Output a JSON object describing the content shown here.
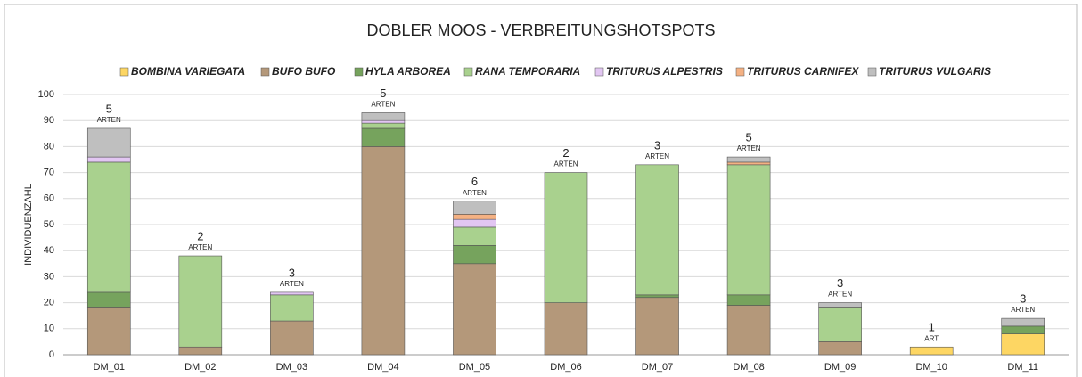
{
  "chart_data": {
    "type": "stacked_bar",
    "title": "DOBLER MOOS - VERBREITUNGSHOTSPOTS",
    "y_label": "INDIVIDUENZAHL",
    "categories": [
      "DM_01",
      "DM_02",
      "DM_03",
      "DM_04",
      "DM_05",
      "DM_06",
      "DM_07",
      "DM_08",
      "DM_09",
      "DM_10",
      "DM_11"
    ],
    "series": [
      {
        "name": "BOMBINA VARIEGATA",
        "color": "#fdd663",
        "values": [
          0,
          0,
          0,
          0,
          0,
          0,
          0,
          0,
          0,
          3,
          8
        ]
      },
      {
        "name": "BUFO BUFO",
        "color": "#b4987a",
        "values": [
          18,
          3,
          13,
          80,
          35,
          20,
          22,
          19,
          5,
          0,
          0
        ]
      },
      {
        "name": "HYLA ARBOREA",
        "color": "#76a35d",
        "values": [
          6,
          0,
          0,
          7,
          7,
          0,
          1,
          4,
          0,
          0,
          3
        ]
      },
      {
        "name": "RANA TEMPORARIA",
        "color": "#a9d18e",
        "values": [
          50,
          35,
          10,
          2,
          7,
          50,
          50,
          50,
          13,
          0,
          0
        ]
      },
      {
        "name": "TRITURUS ALPESTRIS",
        "color": "#e2c6f2",
        "values": [
          2,
          0,
          1,
          1,
          3,
          0,
          0,
          0,
          0,
          0,
          0
        ]
      },
      {
        "name": "TRITURUS CARNIFEX",
        "color": "#f4b183",
        "values": [
          0,
          0,
          0,
          0,
          2,
          0,
          0,
          1,
          0,
          0,
          0
        ]
      },
      {
        "name": "TRITURUS VULGARIS",
        "color": "#bfbfbf",
        "values": [
          11,
          0,
          0,
          3,
          5,
          0,
          0,
          2,
          2,
          0,
          3
        ]
      }
    ],
    "annotations": [
      {
        "count": "5",
        "unit": "ARTEN"
      },
      {
        "count": "2",
        "unit": "ARTEN"
      },
      {
        "count": "3",
        "unit": "ARTEN"
      },
      {
        "count": "5",
        "unit": "ARTEN"
      },
      {
        "count": "6",
        "unit": "ARTEN"
      },
      {
        "count": "2",
        "unit": "ARTEN"
      },
      {
        "count": "3",
        "unit": "ARTEN"
      },
      {
        "count": "5",
        "unit": "ARTEN"
      },
      {
        "count": "3",
        "unit": "ARTEN"
      },
      {
        "count": "1",
        "unit": "ART"
      },
      {
        "count": "3",
        "unit": "ARTEN"
      }
    ],
    "ylim": [
      0,
      100
    ],
    "yticks": [
      0,
      10,
      20,
      30,
      40,
      50,
      60,
      70,
      80,
      90,
      100
    ],
    "grid": true,
    "legend": "top"
  }
}
